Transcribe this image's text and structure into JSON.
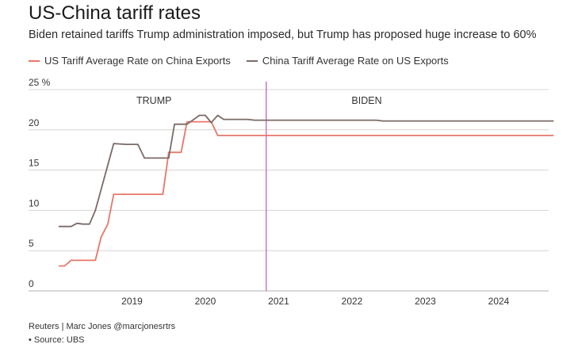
{
  "chart_data": {
    "type": "line",
    "title": "US-China tariff rates",
    "subtitle": "Biden retained tariffs Trump administration imposed, but Trump has proposed huge increase to 60%",
    "ylim": [
      0,
      25
    ],
    "yticks": [
      {
        "value": 0,
        "label": "0"
      },
      {
        "value": 5,
        "label": "5"
      },
      {
        "value": 10,
        "label": "10"
      },
      {
        "value": 15,
        "label": "15"
      },
      {
        "value": 20,
        "label": "20"
      },
      {
        "value": 25,
        "label": "25 %"
      }
    ],
    "xlim": [
      2018.0,
      2024.8
    ],
    "xticks": [
      "2019",
      "2020",
      "2021",
      "2022",
      "2023",
      "2024"
    ],
    "vline_x": 2020.83,
    "annotations": [
      "TRUMP",
      "BIDEN"
    ],
    "grid": true,
    "legend_position": "top",
    "series": [
      {
        "name": "US Tariff Average Rate on China Exports",
        "color": "#e8766a",
        "points": [
          [
            2018.0,
            3.1
          ],
          [
            2018.08,
            3.1
          ],
          [
            2018.17,
            3.8
          ],
          [
            2018.5,
            3.8
          ],
          [
            2018.58,
            6.7
          ],
          [
            2018.67,
            8.3
          ],
          [
            2018.75,
            12.0
          ],
          [
            2019.42,
            12.0
          ],
          [
            2019.5,
            17.2
          ],
          [
            2019.67,
            17.2
          ],
          [
            2019.75,
            21.0
          ],
          [
            2020.08,
            21.0
          ],
          [
            2020.17,
            19.3
          ],
          [
            2024.75,
            19.3
          ]
        ]
      },
      {
        "name": "China Tariff Average Rate on US Exports",
        "color": "#7a6a66",
        "points": [
          [
            2018.0,
            8.0
          ],
          [
            2018.17,
            8.0
          ],
          [
            2018.25,
            8.4
          ],
          [
            2018.33,
            8.3
          ],
          [
            2018.42,
            8.3
          ],
          [
            2018.5,
            10.0
          ],
          [
            2018.75,
            18.3
          ],
          [
            2018.92,
            18.2
          ],
          [
            2019.08,
            18.2
          ],
          [
            2019.17,
            16.5
          ],
          [
            2019.5,
            16.5
          ],
          [
            2019.58,
            20.7
          ],
          [
            2019.75,
            20.7
          ],
          [
            2019.92,
            21.8
          ],
          [
            2020.0,
            21.8
          ],
          [
            2020.08,
            20.9
          ],
          [
            2020.17,
            21.8
          ],
          [
            2020.25,
            21.3
          ],
          [
            2020.58,
            21.3
          ],
          [
            2020.67,
            21.2
          ],
          [
            2022.33,
            21.2
          ],
          [
            2022.42,
            21.1
          ],
          [
            2024.75,
            21.1
          ]
        ]
      }
    ]
  },
  "source": {
    "line1": "Reuters | Marc Jones @marcjonesrtrs",
    "line2": "• Source: UBS"
  }
}
